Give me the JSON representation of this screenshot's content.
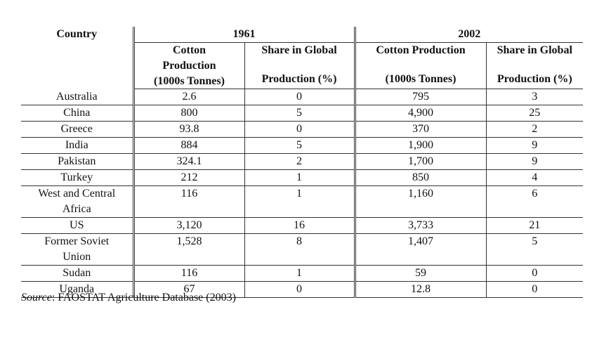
{
  "table": {
    "header": {
      "country": "Country",
      "groups": [
        "1961",
        "2002"
      ],
      "subheaders": [
        [
          "Cotton",
          "Production",
          "(1000s Tonnes)"
        ],
        [
          "Share in Global",
          "Production (%)"
        ],
        [
          "Cotton Production",
          "(1000s Tonnes)"
        ],
        [
          "Share in Global",
          "Production (%)"
        ]
      ]
    },
    "rows": [
      [
        "Australia",
        "2.6",
        "0",
        "795",
        "3"
      ],
      [
        "China",
        "800",
        "5",
        "4,900",
        "25"
      ],
      [
        "Greece",
        "93.8",
        "0",
        "370",
        "2"
      ],
      [
        "India",
        "884",
        "5",
        "1,900",
        "9"
      ],
      [
        "Pakistan",
        "324.1",
        "2",
        "1,700",
        "9"
      ],
      [
        "Turkey",
        "212",
        "1",
        "850",
        "4"
      ],
      [
        "West and Central Africa",
        "116",
        "1",
        "1,160",
        "6"
      ],
      [
        "US",
        "3,120",
        "16",
        "3,733",
        "21"
      ],
      [
        "Former Soviet Union",
        "1,528",
        "8",
        "1,407",
        "5"
      ],
      [
        "Sudan",
        "116",
        "1",
        "59",
        "0"
      ],
      [
        "Uganda",
        "67",
        "0",
        "12.8",
        "0"
      ]
    ]
  },
  "source": {
    "label": "Source",
    "text": ": FAOSTAT Agriculture Database (2003)"
  }
}
